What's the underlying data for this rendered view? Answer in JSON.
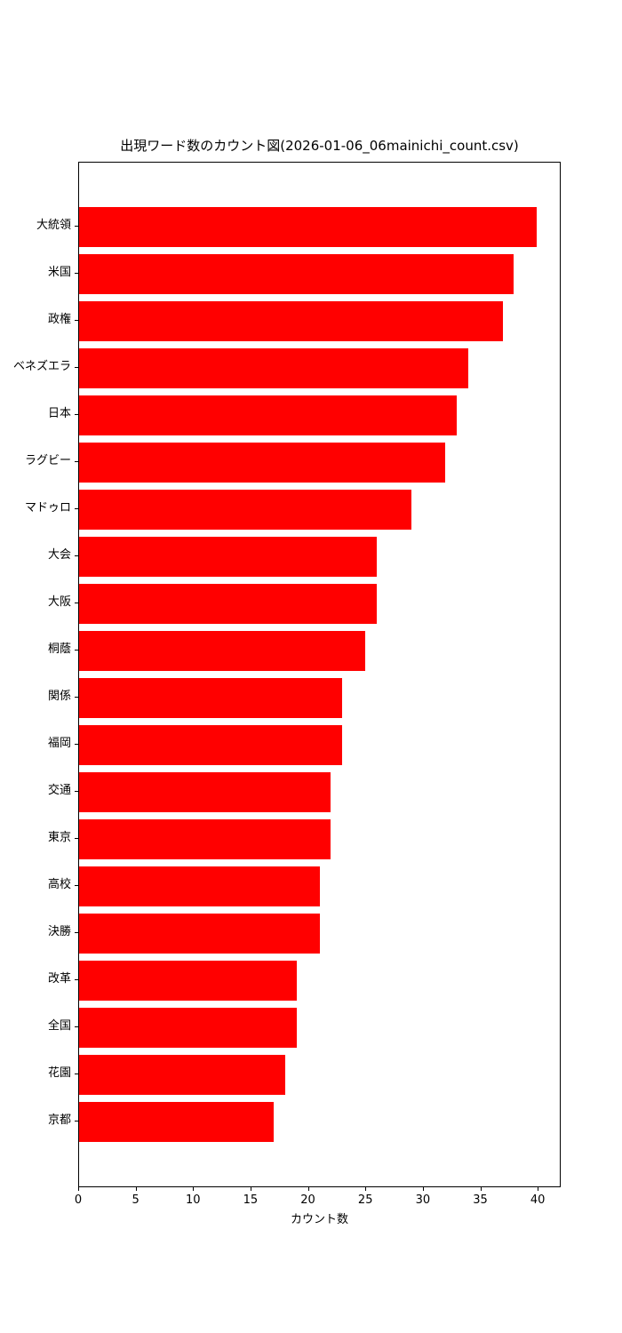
{
  "chart_data": {
    "type": "bar",
    "orientation": "horizontal",
    "title": "出現ワード数のカウント図(2026-01-06_06mainichi_count.csv)",
    "xlabel": "カウント数",
    "ylabel": "",
    "categories": [
      "大統領",
      "米国",
      "政権",
      "ベネズエラ",
      "日本",
      "ラグビー",
      "マドゥロ",
      "大会",
      "大阪",
      "桐蔭",
      "関係",
      "福岡",
      "交通",
      "東京",
      "高校",
      "決勝",
      "改革",
      "全国",
      "花園",
      "京都"
    ],
    "values": [
      40,
      38,
      37,
      34,
      33,
      32,
      29,
      26,
      26,
      25,
      23,
      23,
      22,
      22,
      21,
      21,
      19,
      19,
      18,
      17
    ],
    "bar_color": "#ff0000",
    "xlim": [
      0,
      42
    ],
    "xticks": [
      0,
      5,
      10,
      15,
      20,
      25,
      30,
      35,
      40
    ],
    "grid": false,
    "legend_position": "none"
  }
}
